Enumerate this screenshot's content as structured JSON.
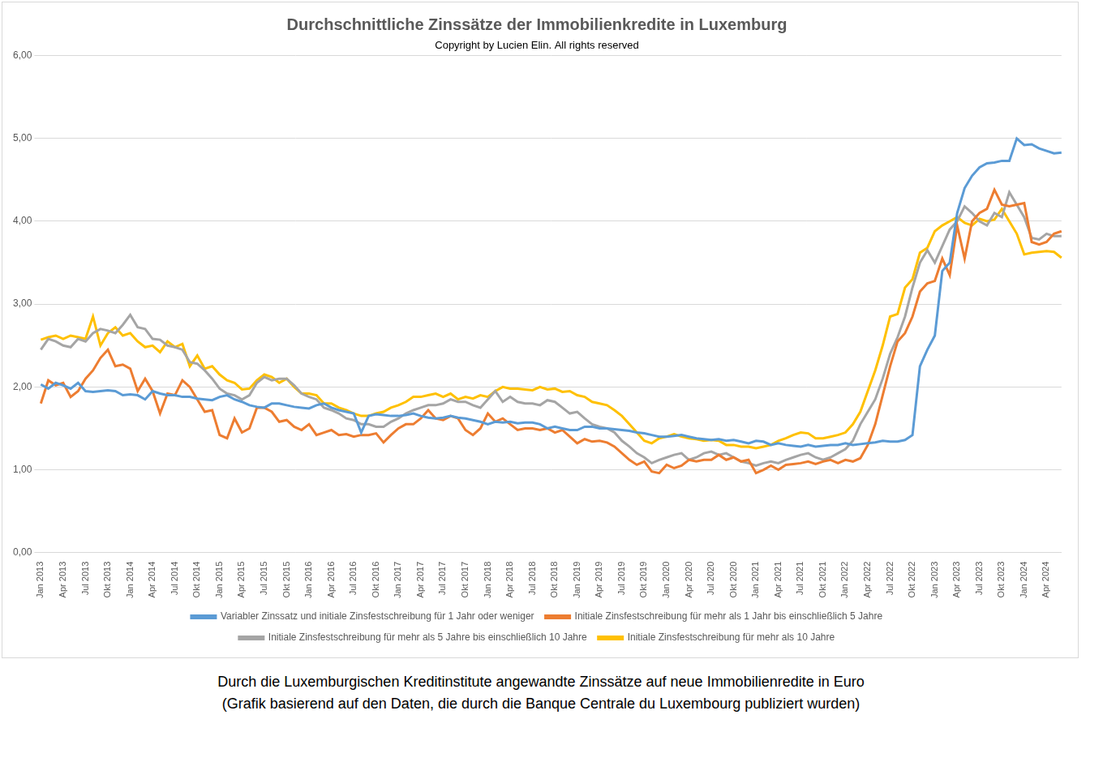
{
  "chart_data": {
    "type": "line",
    "title": "Durchschnittliche Zinssätze der Immobilienkredite in Luxemburg",
    "subtitle": "Copyright by Lucien Elin. All rights reserved",
    "caption": [
      "Durch die Luxemburgischen Kreditinstitute angewandte Zinssätze auf neue Immobilienredite in Euro",
      "(Grafik basierend auf den Daten, die durch die Banque Centrale du Luxembourg publiziert wurden)"
    ],
    "categories": [
      "Jan 2013",
      null,
      null,
      "Apr 2013",
      null,
      null,
      "Jul 2013",
      null,
      null,
      "Okt 2013",
      null,
      null,
      "Jan 2014",
      null,
      null,
      "Apr 2014",
      null,
      null,
      "Jul 2014",
      null,
      null,
      "Okt 2014",
      null,
      null,
      "Jan 2015",
      null,
      null,
      "Apr 2015",
      null,
      null,
      "Jul 2015",
      null,
      null,
      "Okt 2015",
      null,
      null,
      "Jan 2016",
      null,
      null,
      "Apr 2016",
      null,
      null,
      "Jul 2016",
      null,
      null,
      "Okt 2016",
      null,
      null,
      "Jan 2017",
      null,
      null,
      "Apr 2017",
      null,
      null,
      "Jul 2017",
      null,
      null,
      "Okt 2017",
      null,
      null,
      "Jan 2018",
      null,
      null,
      "Apr 2018",
      null,
      null,
      "Jul 2018",
      null,
      null,
      "Okt 2018",
      null,
      null,
      "Jan 2019",
      null,
      null,
      "Apr 2019",
      null,
      null,
      "Jul 2019",
      null,
      null,
      "Okt 2019",
      null,
      null,
      "Jan 2020",
      null,
      null,
      "Apr 2020",
      null,
      null,
      "Jul 2020",
      null,
      null,
      "Okt 2020",
      null,
      null,
      "Jan 2021",
      null,
      null,
      "Apr 2021",
      null,
      null,
      "Jul 2021",
      null,
      null,
      "Okt 2021",
      null,
      null,
      "Jan 2022",
      null,
      null,
      "Apr 2022",
      null,
      null,
      "Jul 2022",
      null,
      null,
      "Okt 2022",
      null,
      null,
      "Jan 2023",
      null,
      null,
      "Apr 2023",
      null,
      null,
      "Jul 2023",
      null,
      null,
      "Okt 2023",
      null,
      null,
      "Jan 2024",
      null,
      null,
      "Apr 2024",
      null,
      null
    ],
    "series": [
      {
        "name": "Variabler Zinssatz und initiale Zinsfestschreibung für 1 Jahr oder weniger",
        "color": "#5b9bd5",
        "values": [
          2.03,
          1.98,
          2.05,
          2.02,
          1.98,
          2.05,
          1.95,
          1.94,
          1.95,
          1.96,
          1.95,
          1.9,
          1.91,
          1.9,
          1.85,
          1.95,
          1.92,
          1.9,
          1.9,
          1.88,
          1.88,
          1.86,
          1.85,
          1.84,
          1.88,
          1.9,
          1.85,
          1.82,
          1.78,
          1.76,
          1.75,
          1.8,
          1.8,
          1.78,
          1.76,
          1.75,
          1.74,
          1.78,
          1.8,
          1.75,
          1.72,
          1.7,
          1.68,
          1.45,
          1.65,
          1.67,
          1.66,
          1.65,
          1.65,
          1.66,
          1.68,
          1.65,
          1.63,
          1.62,
          1.63,
          1.65,
          1.63,
          1.62,
          1.6,
          1.58,
          1.55,
          1.58,
          1.57,
          1.58,
          1.56,
          1.57,
          1.57,
          1.55,
          1.5,
          1.52,
          1.5,
          1.48,
          1.48,
          1.52,
          1.52,
          1.5,
          1.5,
          1.49,
          1.48,
          1.47,
          1.45,
          1.44,
          1.42,
          1.4,
          1.4,
          1.41,
          1.42,
          1.4,
          1.38,
          1.37,
          1.36,
          1.37,
          1.35,
          1.36,
          1.34,
          1.32,
          1.35,
          1.34,
          1.3,
          1.32,
          1.3,
          1.29,
          1.28,
          1.3,
          1.28,
          1.29,
          1.3,
          1.3,
          1.32,
          1.3,
          1.31,
          1.32,
          1.33,
          1.35,
          1.34,
          1.34,
          1.36,
          1.42,
          2.25,
          2.45,
          2.62,
          3.4,
          3.5,
          4.1,
          4.4,
          4.55,
          4.65,
          4.7,
          4.71,
          4.73,
          4.73,
          5.0,
          4.92,
          4.93,
          4.88,
          4.85,
          4.82,
          4.83
        ]
      },
      {
        "name": "Initiale Zinsfestschreibung für mehr als 1 Jahr bis einschließlich 5 Jahre",
        "color": "#ed7d31",
        "values": [
          1.8,
          2.08,
          2.02,
          2.05,
          1.88,
          1.95,
          2.1,
          2.2,
          2.35,
          2.45,
          2.25,
          2.27,
          2.22,
          1.95,
          2.1,
          1.95,
          1.68,
          1.92,
          1.9,
          2.08,
          2.0,
          1.85,
          1.7,
          1.72,
          1.42,
          1.38,
          1.62,
          1.45,
          1.5,
          1.75,
          1.75,
          1.7,
          1.58,
          1.6,
          1.52,
          1.48,
          1.55,
          1.42,
          1.45,
          1.48,
          1.42,
          1.43,
          1.4,
          1.42,
          1.42,
          1.44,
          1.33,
          1.42,
          1.5,
          1.55,
          1.55,
          1.62,
          1.72,
          1.62,
          1.6,
          1.65,
          1.62,
          1.48,
          1.42,
          1.5,
          1.68,
          1.58,
          1.62,
          1.55,
          1.48,
          1.5,
          1.5,
          1.48,
          1.5,
          1.45,
          1.48,
          1.4,
          1.32,
          1.37,
          1.34,
          1.35,
          1.33,
          1.28,
          1.2,
          1.12,
          1.06,
          1.1,
          0.98,
          0.96,
          1.06,
          1.02,
          1.05,
          1.12,
          1.1,
          1.12,
          1.12,
          1.18,
          1.12,
          1.15,
          1.1,
          1.12,
          0.96,
          1.0,
          1.05,
          1.0,
          1.06,
          1.07,
          1.08,
          1.1,
          1.07,
          1.1,
          1.12,
          1.08,
          1.12,
          1.1,
          1.14,
          1.3,
          1.55,
          1.9,
          2.25,
          2.55,
          2.65,
          2.85,
          3.15,
          3.25,
          3.28,
          3.55,
          3.35,
          3.95,
          3.55,
          4.0,
          4.1,
          4.15,
          4.38,
          4.2,
          4.18,
          4.2,
          4.22,
          3.75,
          3.72,
          3.75,
          3.85,
          3.88
        ]
      },
      {
        "name": "Initiale Zinsfestschreibung für mehr als 5 Jahre bis einschließlich 10 Jahre",
        "color": "#a5a5a5",
        "values": [
          2.45,
          2.58,
          2.55,
          2.5,
          2.48,
          2.58,
          2.55,
          2.65,
          2.7,
          2.68,
          2.65,
          2.75,
          2.87,
          2.72,
          2.7,
          2.58,
          2.57,
          2.5,
          2.48,
          2.45,
          2.3,
          2.28,
          2.2,
          2.1,
          1.98,
          1.92,
          1.9,
          1.85,
          1.9,
          2.05,
          2.12,
          2.08,
          2.1,
          2.1,
          2.02,
          1.92,
          1.88,
          1.85,
          1.75,
          1.72,
          1.68,
          1.62,
          1.6,
          1.55,
          1.55,
          1.52,
          1.52,
          1.58,
          1.62,
          1.68,
          1.72,
          1.75,
          1.78,
          1.78,
          1.8,
          1.85,
          1.82,
          1.82,
          1.78,
          1.75,
          1.85,
          1.95,
          1.82,
          1.88,
          1.82,
          1.8,
          1.8,
          1.78,
          1.84,
          1.82,
          1.75,
          1.68,
          1.7,
          1.62,
          1.55,
          1.52,
          1.5,
          1.45,
          1.35,
          1.28,
          1.2,
          1.15,
          1.08,
          1.12,
          1.15,
          1.18,
          1.2,
          1.12,
          1.15,
          1.2,
          1.22,
          1.18,
          1.2,
          1.15,
          1.1,
          1.08,
          1.05,
          1.08,
          1.1,
          1.08,
          1.12,
          1.15,
          1.18,
          1.2,
          1.15,
          1.12,
          1.15,
          1.2,
          1.25,
          1.35,
          1.55,
          1.7,
          1.85,
          2.1,
          2.4,
          2.6,
          2.85,
          3.2,
          3.5,
          3.65,
          3.5,
          3.7,
          3.9,
          4.0,
          4.18,
          4.1,
          4.0,
          3.95,
          4.1,
          4.05,
          4.35,
          4.2,
          4.05,
          3.8,
          3.78,
          3.85,
          3.82,
          3.82
        ]
      },
      {
        "name": "Initiale Zinsfestschreibung für mehr als 10 Jahre",
        "color": "#ffc000",
        "values": [
          2.57,
          2.6,
          2.62,
          2.58,
          2.62,
          2.6,
          2.58,
          2.85,
          2.5,
          2.65,
          2.72,
          2.62,
          2.65,
          2.55,
          2.48,
          2.5,
          2.42,
          2.55,
          2.48,
          2.52,
          2.25,
          2.38,
          2.22,
          2.25,
          2.15,
          2.08,
          2.05,
          1.97,
          1.98,
          2.08,
          2.15,
          2.12,
          2.05,
          2.1,
          2.0,
          1.92,
          1.92,
          1.9,
          1.8,
          1.8,
          1.75,
          1.72,
          1.68,
          1.65,
          1.65,
          1.68,
          1.7,
          1.75,
          1.78,
          1.82,
          1.88,
          1.88,
          1.9,
          1.92,
          1.88,
          1.92,
          1.85,
          1.88,
          1.86,
          1.9,
          1.88,
          1.95,
          2.0,
          1.98,
          1.98,
          1.97,
          1.96,
          2.0,
          1.97,
          1.98,
          1.94,
          1.95,
          1.9,
          1.88,
          1.82,
          1.8,
          1.78,
          1.72,
          1.65,
          1.55,
          1.45,
          1.35,
          1.32,
          1.38,
          1.4,
          1.43,
          1.4,
          1.38,
          1.37,
          1.35,
          1.36,
          1.35,
          1.3,
          1.3,
          1.28,
          1.28,
          1.26,
          1.28,
          1.3,
          1.35,
          1.38,
          1.42,
          1.45,
          1.44,
          1.38,
          1.38,
          1.4,
          1.42,
          1.45,
          1.55,
          1.7,
          1.95,
          2.2,
          2.5,
          2.85,
          2.88,
          3.2,
          3.3,
          3.62,
          3.68,
          3.88,
          3.95,
          4.0,
          4.05,
          3.98,
          3.95,
          4.03,
          4.0,
          4.02,
          4.15,
          4.0,
          3.85,
          3.6,
          3.62,
          3.63,
          3.64,
          3.63,
          3.56
        ]
      }
    ],
    "ylim": [
      0,
      6
    ],
    "yticks": [
      {
        "value": 0,
        "label": "0,00"
      },
      {
        "value": 1,
        "label": "1,00"
      },
      {
        "value": 2,
        "label": "2,00"
      },
      {
        "value": 3,
        "label": "3,00"
      },
      {
        "value": 4,
        "label": "4,00"
      },
      {
        "value": 5,
        "label": "5,00"
      },
      {
        "value": 6,
        "label": "6,00"
      }
    ],
    "grid": true,
    "legend": "bottom"
  }
}
